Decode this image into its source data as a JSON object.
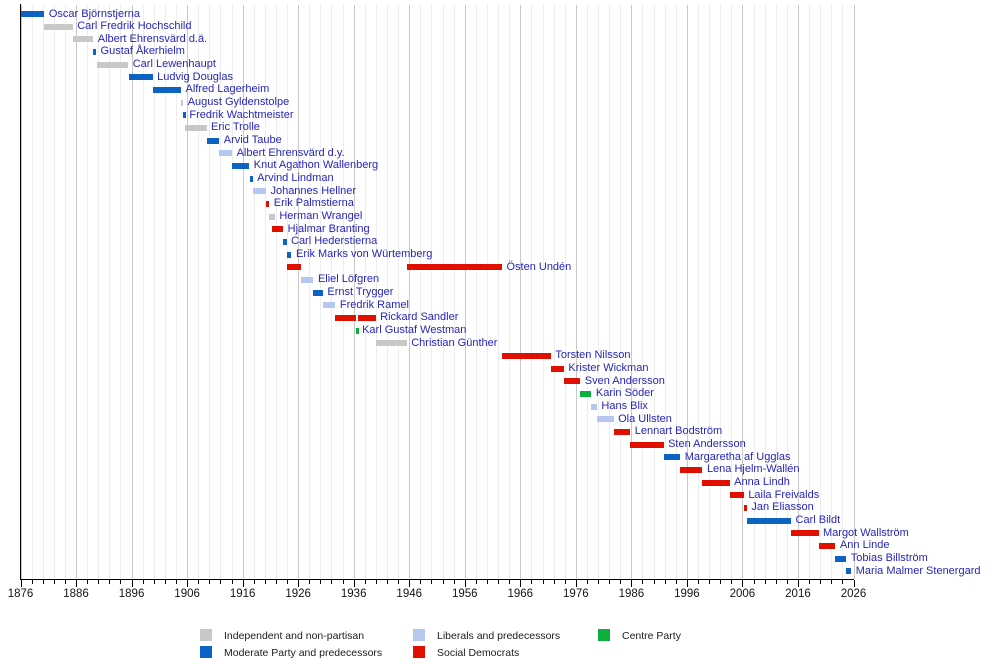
{
  "chart_data": {
    "type": "timeline",
    "x_axis": {
      "start": 1876,
      "end": 2026,
      "minor_step": 2,
      "major_step": 10,
      "tick_labels": [
        "1876",
        "1886",
        "1896",
        "1906",
        "1916",
        "1926",
        "1936",
        "1946",
        "1956",
        "1966",
        "1976",
        "1986",
        "1996",
        "2006",
        "2016",
        "2026"
      ]
    },
    "colors": {
      "independent": "#c8c8c8",
      "moderate": "#0d63c4",
      "liberals": "#b6c8f0",
      "social_democrats": "#e01000",
      "centre": "#0cb03c",
      "label_text": "#2626bb"
    },
    "legend": [
      {
        "party": "independent",
        "label": "Independent and non-partisan"
      },
      {
        "party": "liberals",
        "label": "Liberals and predecessors"
      },
      {
        "party": "centre",
        "label": "Centre Party"
      },
      {
        "party": "moderate",
        "label": "Moderate Party and predecessors"
      },
      {
        "party": "social_democrats",
        "label": "Social Democrats"
      }
    ],
    "rows": [
      {
        "name": "Oscar Björnstjerna",
        "party": "moderate",
        "terms": [
          [
            1876.0,
            1880.3
          ]
        ]
      },
      {
        "name": "Carl Fredrik Hochschild",
        "party": "independent",
        "terms": [
          [
            1880.3,
            1885.4
          ]
        ]
      },
      {
        "name": "Albert Ehrensvärd d.ä.",
        "party": "independent",
        "terms": [
          [
            1885.4,
            1889.1
          ]
        ]
      },
      {
        "name": "Gustaf Åkerhielm",
        "party": "moderate",
        "terms": [
          [
            1889.1,
            1889.6
          ]
        ]
      },
      {
        "name": "Carl Lewenhaupt",
        "party": "independent",
        "terms": [
          [
            1889.8,
            1895.4
          ]
        ]
      },
      {
        "name": "Ludvig Douglas",
        "party": "moderate",
        "terms": [
          [
            1895.5,
            1899.8
          ]
        ]
      },
      {
        "name": "Alfred Lagerheim",
        "party": "moderate",
        "terms": [
          [
            1899.8,
            1904.9
          ]
        ]
      },
      {
        "name": "August Gyldenstolpe",
        "party": "independent",
        "terms": [
          [
            1904.9,
            1905.3
          ]
        ]
      },
      {
        "name": "Fredrik Wachtmeister",
        "party": "moderate",
        "terms": [
          [
            1905.3,
            1905.6
          ]
        ]
      },
      {
        "name": "Eric Trolle",
        "party": "independent",
        "terms": [
          [
            1905.6,
            1909.5
          ]
        ]
      },
      {
        "name": "Arvid Taube",
        "party": "moderate",
        "terms": [
          [
            1909.5,
            1911.8
          ]
        ]
      },
      {
        "name": "Albert Ehrensvärd d.y.",
        "party": "liberals",
        "terms": [
          [
            1911.8,
            1914.1
          ]
        ]
      },
      {
        "name": "Knut Agathon Wallenberg",
        "party": "moderate",
        "terms": [
          [
            1914.1,
            1917.2
          ]
        ]
      },
      {
        "name": "Arvind Lindman",
        "party": "moderate",
        "terms": [
          [
            1917.25,
            1917.8
          ]
        ]
      },
      {
        "name": "Johannes Hellner",
        "party": "liberals",
        "terms": [
          [
            1917.8,
            1920.2
          ]
        ]
      },
      {
        "name": "Erik Palmstierna",
        "party": "social_democrats",
        "terms": [
          [
            1920.2,
            1920.8
          ]
        ]
      },
      {
        "name": "Herman Wrangel",
        "party": "independent",
        "terms": [
          [
            1920.8,
            1921.8
          ]
        ]
      },
      {
        "name": "Hjalmar Branting",
        "party": "social_democrats",
        "terms": [
          [
            1921.3,
            1923.3
          ]
        ]
      },
      {
        "name": "Carl Hederstierna",
        "party": "moderate",
        "terms": [
          [
            1923.3,
            1923.9
          ]
        ]
      },
      {
        "name": "Erik Marks von Würtemberg",
        "party": "moderate",
        "terms": [
          [
            1923.9,
            1924.8
          ]
        ]
      },
      {
        "name": "Östen Undén",
        "party": "social_democrats",
        "terms": [
          [
            1924.0,
            1926.5
          ],
          [
            1945.55,
            1962.7
          ]
        ]
      },
      {
        "name": "Eliel Löfgren",
        "party": "liberals",
        "terms": [
          [
            1926.5,
            1928.75
          ]
        ]
      },
      {
        "name": "Ernst Trygger",
        "party": "moderate",
        "terms": [
          [
            1928.75,
            1930.45
          ]
        ]
      },
      {
        "name": "Fredrik Ramel",
        "party": "liberals",
        "terms": [
          [
            1930.45,
            1932.7
          ]
        ]
      },
      {
        "name": "Rickard Sandler",
        "party": "social_democrats",
        "terms": [
          [
            1932.7,
            1936.45
          ],
          [
            1936.7,
            1939.95
          ]
        ]
      },
      {
        "name": "Karl Gustaf Westman",
        "party": "centre",
        "terms": [
          [
            1936.45,
            1936.7
          ]
        ]
      },
      {
        "name": "Christian Günther",
        "party": "independent",
        "terms": [
          [
            1939.95,
            1945.55
          ]
        ]
      },
      {
        "name": "Torsten Nilsson",
        "party": "social_democrats",
        "terms": [
          [
            1962.7,
            1971.5
          ]
        ]
      },
      {
        "name": "Krister Wickman",
        "party": "social_democrats",
        "terms": [
          [
            1971.5,
            1973.85
          ]
        ]
      },
      {
        "name": "Sven Andersson",
        "party": "social_democrats",
        "terms": [
          [
            1973.85,
            1976.8
          ]
        ]
      },
      {
        "name": "Karin Söder",
        "party": "centre",
        "terms": [
          [
            1976.8,
            1978.8
          ]
        ]
      },
      {
        "name": "Hans Blix",
        "party": "liberals",
        "terms": [
          [
            1978.8,
            1979.8
          ]
        ]
      },
      {
        "name": "Ola Ullsten",
        "party": "liberals",
        "terms": [
          [
            1979.8,
            1982.8
          ]
        ]
      },
      {
        "name": "Lennart Bodström",
        "party": "social_democrats",
        "terms": [
          [
            1982.8,
            1985.8
          ]
        ]
      },
      {
        "name": "Sten Andersson",
        "party": "social_democrats",
        "terms": [
          [
            1985.8,
            1991.8
          ]
        ]
      },
      {
        "name": "Margaretha af Ugglas",
        "party": "moderate",
        "terms": [
          [
            1991.8,
            1994.8
          ]
        ]
      },
      {
        "name": "Lena Hjelm-Wallén",
        "party": "social_democrats",
        "terms": [
          [
            1994.8,
            1998.8
          ]
        ]
      },
      {
        "name": "Anna Lindh",
        "party": "social_democrats",
        "terms": [
          [
            1998.8,
            2003.7
          ]
        ]
      },
      {
        "name": "Laila Freivalds",
        "party": "social_democrats",
        "terms": [
          [
            2003.75,
            2006.25
          ]
        ]
      },
      {
        "name": "Jan Eliasson",
        "party": "social_democrats",
        "terms": [
          [
            2006.3,
            2006.8
          ]
        ]
      },
      {
        "name": "Carl Bildt",
        "party": "moderate",
        "terms": [
          [
            2006.75,
            2014.75
          ]
        ]
      },
      {
        "name": "Margot Wallström",
        "party": "social_democrats",
        "terms": [
          [
            2014.75,
            2019.7
          ]
        ]
      },
      {
        "name": "Ann Linde",
        "party": "social_democrats",
        "terms": [
          [
            2019.7,
            2022.75
          ]
        ]
      },
      {
        "name": "Tobias Billström",
        "party": "moderate",
        "terms": [
          [
            2022.75,
            2024.7
          ]
        ]
      },
      {
        "name": "Maria Malmer Stenergard",
        "party": "moderate",
        "terms": [
          [
            2024.7,
            2025.6
          ]
        ]
      }
    ]
  }
}
